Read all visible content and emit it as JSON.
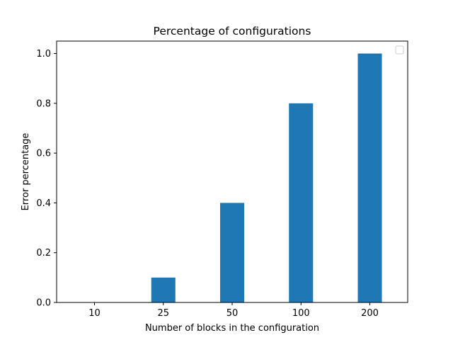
{
  "chart_data": {
    "type": "bar",
    "title": "Percentage of configurations",
    "xlabel": "Number of blocks in the configuration",
    "ylabel": "Error percentage",
    "categories": [
      "10",
      "25",
      "50",
      "100",
      "200"
    ],
    "values": [
      0.0,
      0.1,
      0.4,
      0.8,
      1.0
    ],
    "ylim": [
      0,
      1.05
    ],
    "yticks": [
      "0.0",
      "0.2",
      "0.4",
      "0.6",
      "0.8",
      "1.0"
    ],
    "grid": false,
    "legend": {
      "placement": "upper-right",
      "entries": []
    },
    "colors": {
      "bar": "#1f77b4",
      "axes": "#000000",
      "legend_border": "#cccccc"
    }
  }
}
